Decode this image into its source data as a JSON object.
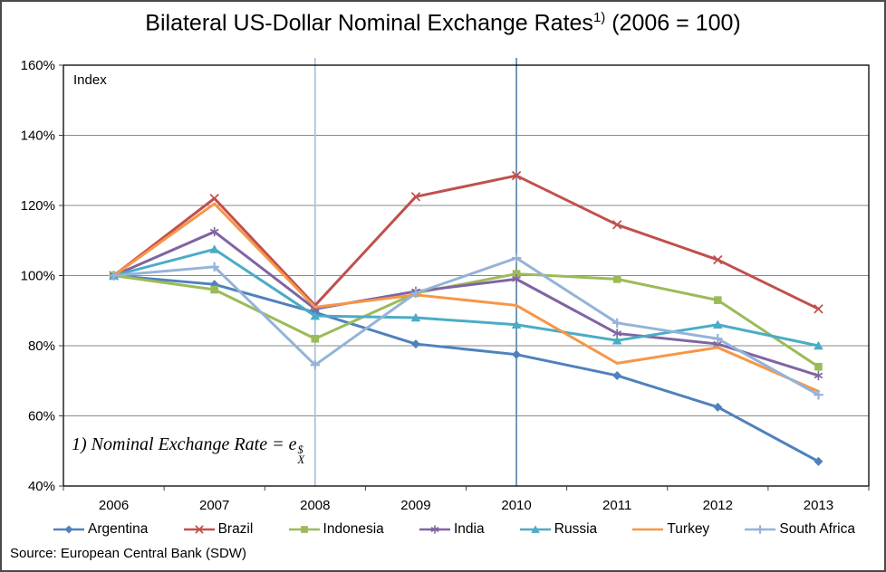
{
  "figure": {
    "title": {
      "main": "Bilateral US-Dollar Nominal Exchange Rates",
      "superscript": "1)",
      "suffix": " (2006 = 100)"
    },
    "index_label": "Index",
    "footnote": {
      "prefix": "1) ",
      "text": "Nominal Exchange Rate =  ",
      "symbol_base": "e",
      "symbol_sup": "$",
      "symbol_sub": "X"
    },
    "source": "Source: European Central Bank (SDW)"
  },
  "chart_data": {
    "type": "line",
    "title": "Bilateral US-Dollar Nominal Exchange Rates 1) (2006 = 100)",
    "ylabel": "Index",
    "ylim": [
      40,
      160
    ],
    "ytick_step": 20,
    "ytick_format": "percent",
    "grid": "horizontal-gridlines",
    "legend_position": "bottom",
    "categories": [
      2006,
      2007,
      2008,
      2009,
      2010,
      2011,
      2012,
      2013
    ],
    "vertical_guides": [
      {
        "x": 2008,
        "color": "#a8c3dd"
      },
      {
        "x": 2010,
        "color": "#5e87aa"
      }
    ],
    "series": [
      {
        "name": "Argentina",
        "color": "#4F81BD",
        "marker": "diamond",
        "values": [
          100,
          97.5,
          89.5,
          80.5,
          77.5,
          71.5,
          62.5,
          47
        ]
      },
      {
        "name": "Brazil",
        "color": "#C0504D",
        "marker": "x",
        "values": [
          100,
          122,
          91.5,
          122.5,
          128.5,
          114.5,
          104.5,
          90.5
        ]
      },
      {
        "name": "Indonesia",
        "color": "#9BBB59",
        "marker": "square",
        "values": [
          100,
          96,
          82,
          95,
          100.5,
          99,
          93,
          74
        ]
      },
      {
        "name": "India",
        "color": "#8064A2",
        "marker": "asterisk",
        "values": [
          100,
          112.5,
          90.5,
          95.5,
          99,
          83.5,
          80.5,
          71.5
        ]
      },
      {
        "name": "Russia",
        "color": "#4BACC6",
        "marker": "triangle",
        "values": [
          100,
          107.5,
          88.5,
          88,
          86,
          81.5,
          86,
          80
        ]
      },
      {
        "name": "Turkey",
        "color": "#F79646",
        "marker": "none",
        "values": [
          100,
          120.5,
          91,
          94.5,
          91.5,
          75,
          79.5,
          67
        ]
      },
      {
        "name": "South Africa",
        "color": "#95B3D7",
        "marker": "plus",
        "values": [
          100,
          102.5,
          74.5,
          95,
          105,
          86.5,
          82,
          66
        ]
      }
    ]
  }
}
